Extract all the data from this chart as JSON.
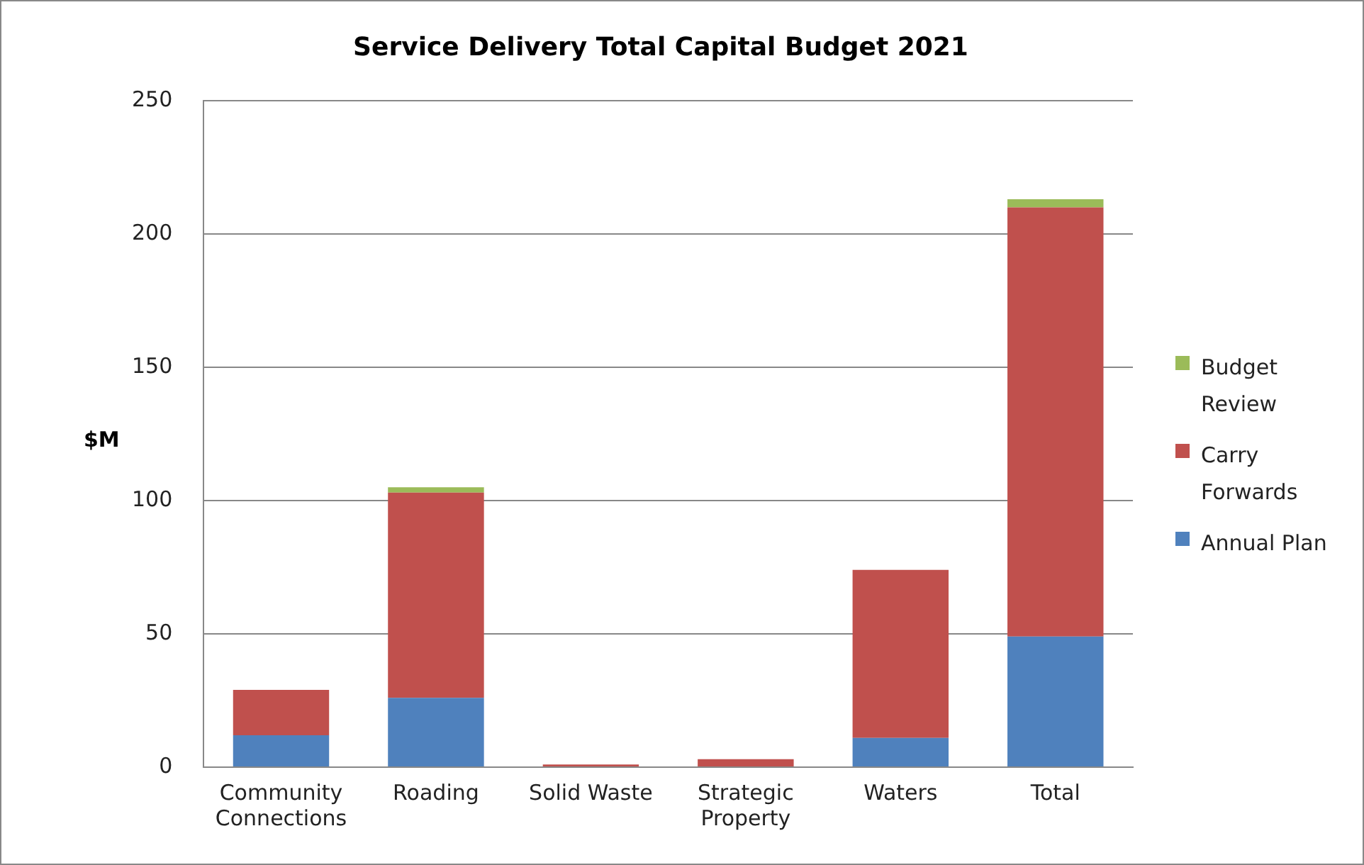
{
  "chart_data": {
    "type": "bar",
    "title": "Service Delivery Total Capital Budget 2021",
    "ylabel": "$M",
    "categories": [
      "Community Connections",
      "Roading",
      "Solid Waste",
      "Strategic Property",
      "Waters",
      "Total"
    ],
    "stacked": true,
    "series": [
      {
        "name": "Annual Plan",
        "color": "#4f81bd",
        "values": [
          12,
          26,
          0,
          0,
          11,
          49
        ]
      },
      {
        "name": "Carry Forwards",
        "color": "#c0504d",
        "values": [
          17,
          77,
          1,
          3,
          63,
          161
        ]
      },
      {
        "name": "Budget Review",
        "color": "#9bbb59",
        "values": [
          0,
          2,
          0,
          0,
          0,
          3
        ]
      }
    ],
    "ylim": [
      0,
      250
    ],
    "yticks": [
      0,
      50,
      100,
      150,
      200,
      250
    ],
    "grid": "y",
    "legend": "right"
  }
}
